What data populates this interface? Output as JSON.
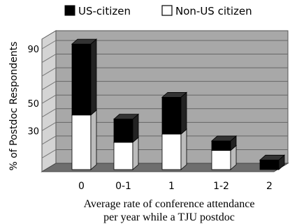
{
  "chart_data": {
    "type": "bar",
    "stacked": true,
    "categories": [
      "0",
      "0-1",
      "1",
      "1-2",
      "2"
    ],
    "series": [
      {
        "name": "Non-US citizen",
        "values": [
          40,
          20,
          26,
          14,
          0
        ],
        "color": "#ffffff"
      },
      {
        "name": "US-citizen",
        "values": [
          52,
          17,
          27,
          7,
          7
        ],
        "color": "#000000"
      }
    ],
    "legend": [
      {
        "label": "US-citizen",
        "color": "#000000"
      },
      {
        "label": "Non-US citizen",
        "color": "#ffffff"
      }
    ],
    "legend_position": "top",
    "ylabel": "% of Postdoc Respondents",
    "xlabel_line1": "Average rate of conference attendance",
    "xlabel_line2": "per year while a TJU postdoc",
    "y_ticks": [
      30,
      50,
      90
    ],
    "ylim": [
      0,
      95
    ],
    "grid": true,
    "style": "3d",
    "back_wall_color": "#a8a8a8",
    "floor_color": "#6e6e6e"
  }
}
